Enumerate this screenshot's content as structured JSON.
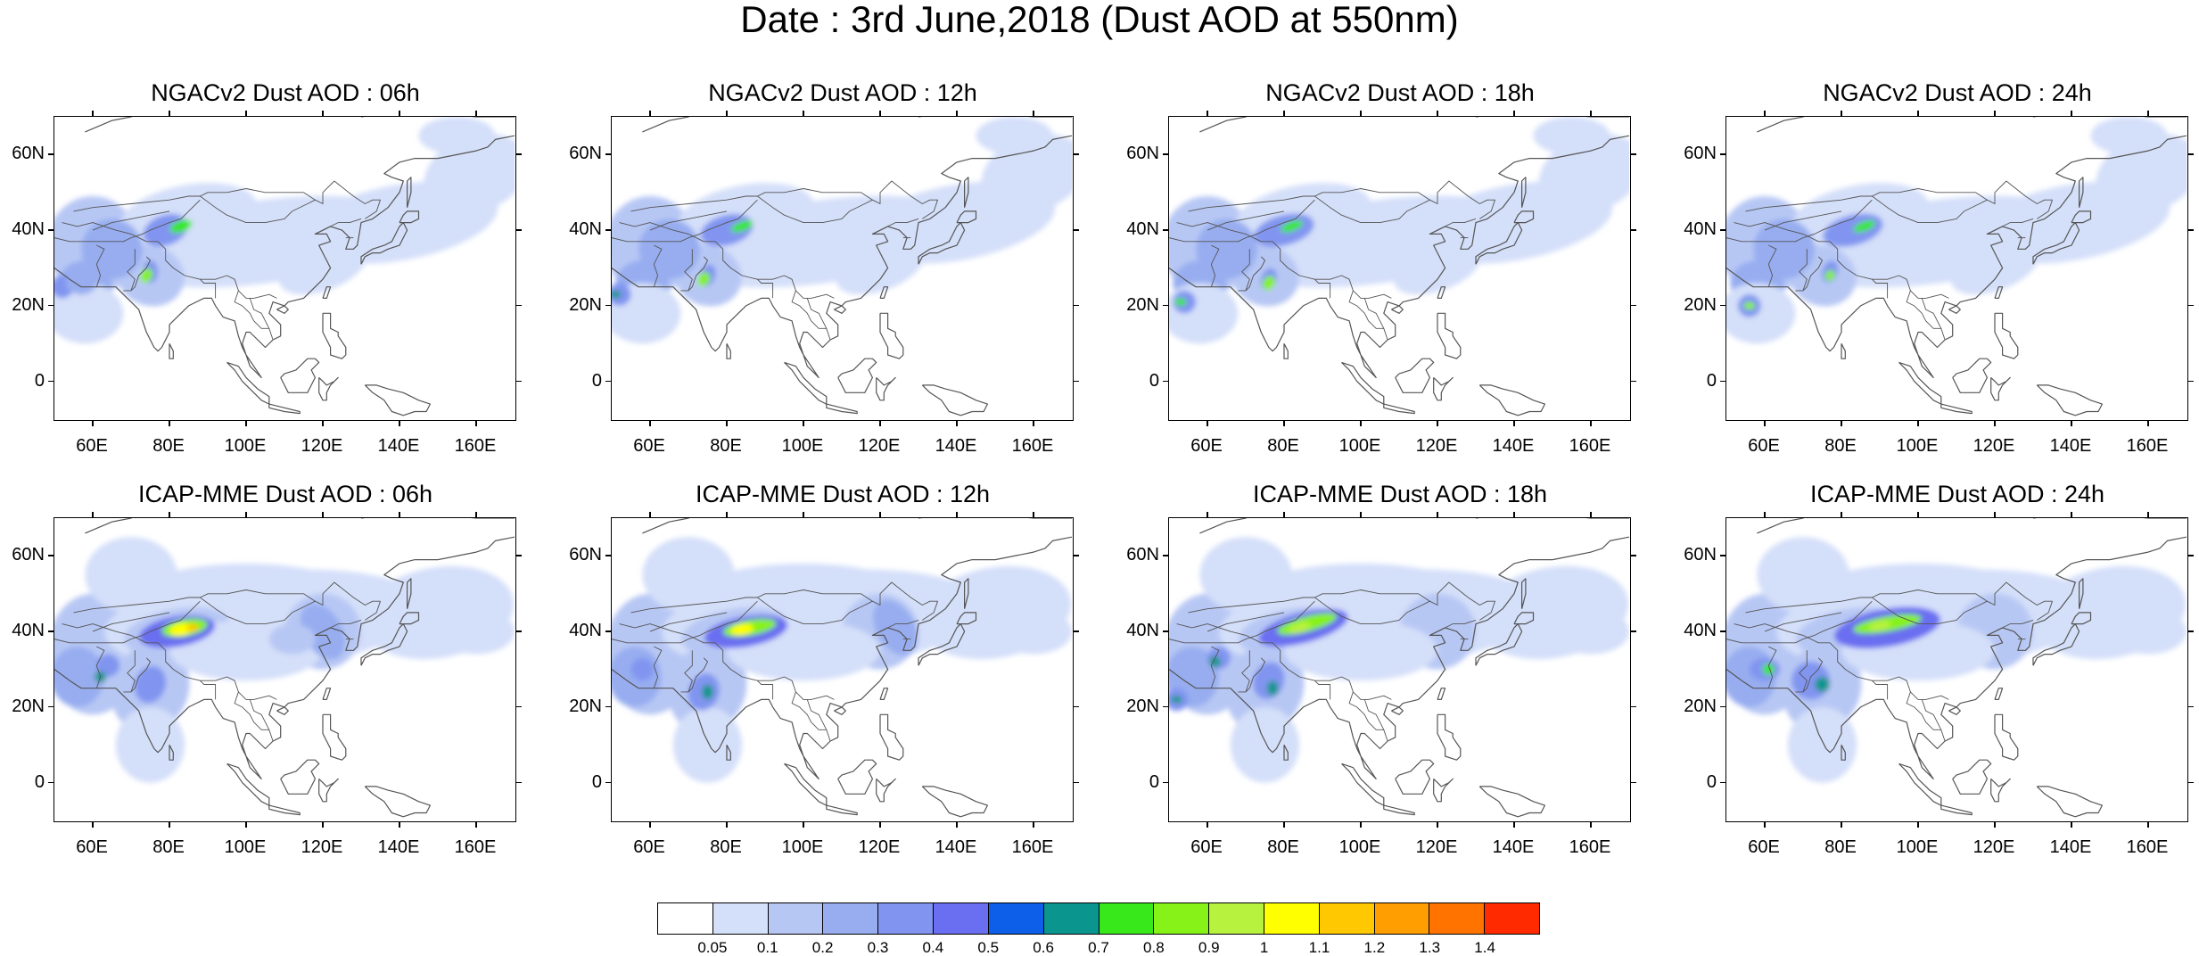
{
  "title": "Date : 3rd June,2018 (Dust AOD at 550nm)",
  "colors": {
    "levels": [
      "#ffffff",
      "#d4dff9",
      "#b7c7f4",
      "#97adf0",
      "#8195f0",
      "#6a6ef0",
      "#0d5ee8",
      "#0a968f",
      "#38e81a",
      "#86f218",
      "#b7f23f",
      "#ffff00",
      "#ffc800",
      "#ff9e00",
      "#ff7300",
      "#ff2a00"
    ],
    "coastline": "#555555"
  },
  "colorbar": {
    "labels": [
      "0.05",
      "0.1",
      "0.2",
      "0.3",
      "0.4",
      "0.5",
      "0.6",
      "0.7",
      "0.8",
      "0.9",
      "1",
      "1.1",
      "1.2",
      "1.3",
      "1.4"
    ]
  },
  "axes": {
    "lat_labels": [
      "60N",
      "40N",
      "20N",
      "0"
    ],
    "lat_values": [
      60,
      40,
      20,
      0
    ],
    "lon_labels": [
      "60E",
      "80E",
      "100E",
      "120E",
      "140E",
      "160E"
    ],
    "lon_values": [
      60,
      80,
      100,
      120,
      140,
      160
    ],
    "lon_range": [
      50,
      170
    ],
    "lat_range": [
      -10,
      70
    ]
  },
  "panels": [
    {
      "title": "NGACv2 Dust AOD : 06h",
      "model": "NGACv2",
      "hour": 6
    },
    {
      "title": "NGACv2 Dust AOD : 12h",
      "model": "NGACv2",
      "hour": 12
    },
    {
      "title": "NGACv2 Dust AOD : 18h",
      "model": "NGACv2",
      "hour": 18
    },
    {
      "title": "NGACv2 Dust AOD : 24h",
      "model": "NGACv2",
      "hour": 24
    },
    {
      "title": "ICAP-MME Dust AOD : 06h",
      "model": "ICAP-MME",
      "hour": 6
    },
    {
      "title": "ICAP-MME Dust AOD : 12h",
      "model": "ICAP-MME",
      "hour": 12
    },
    {
      "title": "ICAP-MME Dust AOD : 18h",
      "model": "ICAP-MME",
      "hour": 18
    },
    {
      "title": "ICAP-MME Dust AOD : 24h",
      "model": "ICAP-MME",
      "hour": 24
    }
  ]
}
